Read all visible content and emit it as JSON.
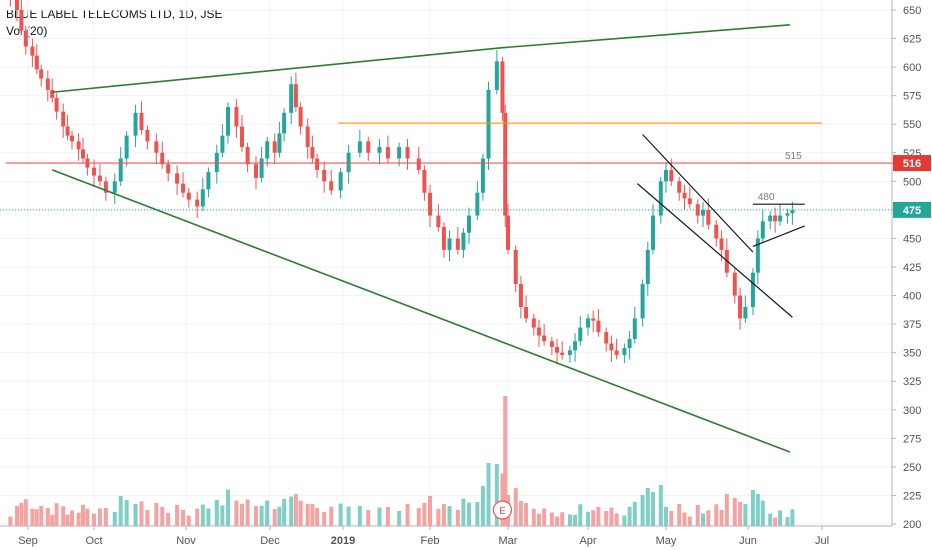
{
  "header": {
    "title": "BLUE LABEL TELECOMS LTD, 1D, JSE",
    "volume_label": "Vol (20)"
  },
  "colors": {
    "up": "#26a69a",
    "down": "#ef5350",
    "up_vol": "#7fcfc7",
    "down_vol": "#f5a3a1",
    "trend_green": "#2e7d32",
    "resistance_orange": "#ff9800",
    "level_red": "#ef5350",
    "price_line": "#26a69a",
    "channel": "#131722"
  },
  "chart_data": {
    "type": "candlestick",
    "symbol": "BLUE LABEL TELECOMS LTD",
    "interval": "1D",
    "exchange": "JSE",
    "x_ticks": [
      "Sep",
      "Oct",
      "Nov",
      "Dec",
      "2019",
      "Feb",
      "Mar",
      "Apr",
      "May",
      "Jun",
      "Jul"
    ],
    "x_tick_dates": [
      "2018-09-01",
      "2018-10-01",
      "2018-11-01",
      "2018-12-01",
      "2019-01-01",
      "2019-02-01",
      "2019-03-01",
      "2019-04-01",
      "2019-05-01",
      "2019-06-01",
      "2019-07-01"
    ],
    "y_ticks": [
      200,
      225,
      250,
      275,
      300,
      325,
      350,
      375,
      400,
      425,
      450,
      475,
      500,
      525,
      550,
      575,
      600,
      625,
      650
    ],
    "ylim": [
      196,
      660
    ],
    "last_price_label": "475",
    "last_price": 475,
    "level_label": "516",
    "level_price": 516,
    "annotations": [
      {
        "text": "515",
        "date": "2019-06-16",
        "price": 516
      },
      {
        "text": "480",
        "date": "2019-06-05",
        "price": 480
      }
    ],
    "event_marker": {
      "text": "E",
      "date": "2019-02-27"
    },
    "lines": [
      {
        "name": "upper-trend",
        "color": "trend_green",
        "points": [
          [
            "2018-09-12",
            578
          ],
          [
            "2019-02-27",
            617
          ],
          [
            "2019-06-18",
            637
          ]
        ]
      },
      {
        "name": "lower-trend",
        "color": "trend_green",
        "points": [
          [
            "2018-09-12",
            510
          ],
          [
            "2019-06-18",
            263
          ]
        ]
      },
      {
        "name": "resistance",
        "color": "resistance_orange",
        "points": [
          [
            "2018-12-30",
            551
          ],
          [
            "2019-07-01",
            551
          ]
        ]
      },
      {
        "name": "level-516",
        "color": "level_red",
        "points": [
          [
            "2018-08-22",
            516
          ],
          [
            "2019-08-10",
            516
          ]
        ]
      },
      {
        "name": "channel-upper",
        "color": "channel",
        "points": [
          [
            "2019-04-22",
            541
          ],
          [
            "2019-06-03",
            438
          ]
        ]
      },
      {
        "name": "channel-lower",
        "color": "channel",
        "points": [
          [
            "2019-04-20",
            498
          ],
          [
            "2019-06-19",
            381
          ]
        ]
      },
      {
        "name": "flag-upper",
        "color": "channel",
        "points": [
          [
            "2019-06-03",
            480
          ],
          [
            "2019-06-24",
            480
          ]
        ]
      },
      {
        "name": "flag-lower",
        "color": "channel",
        "points": [
          [
            "2019-06-03",
            443
          ],
          [
            "2019-06-24",
            461
          ]
        ]
      }
    ],
    "series_close": [
      [
        "2018-08-24",
        660
      ],
      [
        "2018-08-27",
        650
      ],
      [
        "2018-08-29",
        632
      ],
      [
        "2018-08-31",
        618
      ],
      [
        "2018-09-03",
        610
      ],
      [
        "2018-09-05",
        598
      ],
      [
        "2018-09-07",
        590
      ],
      [
        "2018-09-10",
        580
      ],
      [
        "2018-09-12",
        573
      ],
      [
        "2018-09-14",
        561
      ],
      [
        "2018-09-17",
        548
      ],
      [
        "2018-09-19",
        540
      ],
      [
        "2018-09-21",
        535
      ],
      [
        "2018-09-24",
        528
      ],
      [
        "2018-09-26",
        520
      ],
      [
        "2018-09-28",
        512
      ],
      [
        "2018-10-01",
        505
      ],
      [
        "2018-10-03",
        500
      ],
      [
        "2018-10-05",
        490
      ],
      [
        "2018-10-08",
        500
      ],
      [
        "2018-10-10",
        520
      ],
      [
        "2018-10-12",
        540
      ],
      [
        "2018-10-15",
        560
      ],
      [
        "2018-10-17",
        545
      ],
      [
        "2018-10-19",
        535
      ],
      [
        "2018-10-22",
        525
      ],
      [
        "2018-10-24",
        515
      ],
      [
        "2018-10-26",
        507
      ],
      [
        "2018-10-29",
        498
      ],
      [
        "2018-10-31",
        490
      ],
      [
        "2018-11-02",
        484
      ],
      [
        "2018-11-05",
        478
      ],
      [
        "2018-11-07",
        493
      ],
      [
        "2018-11-09",
        508
      ],
      [
        "2018-11-12",
        525
      ],
      [
        "2018-11-14",
        540
      ],
      [
        "2018-11-16",
        565
      ],
      [
        "2018-11-19",
        548
      ],
      [
        "2018-11-21",
        530
      ],
      [
        "2018-11-23",
        515
      ],
      [
        "2018-11-26",
        503
      ],
      [
        "2018-11-28",
        520
      ],
      [
        "2018-11-30",
        535
      ],
      [
        "2018-12-03",
        525
      ],
      [
        "2018-12-05",
        542
      ],
      [
        "2018-12-07",
        560
      ],
      [
        "2018-12-10",
        585
      ],
      [
        "2018-12-12",
        565
      ],
      [
        "2018-12-14",
        548
      ],
      [
        "2018-12-17",
        530
      ],
      [
        "2018-12-19",
        520
      ],
      [
        "2018-12-21",
        510
      ],
      [
        "2018-12-24",
        500
      ],
      [
        "2018-12-27",
        492
      ],
      [
        "2018-12-31",
        508
      ],
      [
        "2019-01-03",
        525
      ],
      [
        "2019-01-07",
        535
      ],
      [
        "2019-01-10",
        525
      ],
      [
        "2019-01-14",
        530
      ],
      [
        "2019-01-17",
        520
      ],
      [
        "2019-01-21",
        530
      ],
      [
        "2019-01-24",
        520
      ],
      [
        "2019-01-28",
        510
      ],
      [
        "2019-01-30",
        490
      ],
      [
        "2019-02-01",
        470
      ],
      [
        "2019-02-04",
        460
      ],
      [
        "2019-02-06",
        440
      ],
      [
        "2019-02-08",
        450
      ],
      [
        "2019-02-11",
        440
      ],
      [
        "2019-02-13",
        455
      ],
      [
        "2019-02-15",
        470
      ],
      [
        "2019-02-18",
        490
      ],
      [
        "2019-02-20",
        520
      ],
      [
        "2019-02-22",
        580
      ],
      [
        "2019-02-25",
        605
      ],
      [
        "2019-02-27",
        560
      ],
      [
        "2019-02-28",
        470
      ],
      [
        "2019-03-01",
        440
      ],
      [
        "2019-03-04",
        410
      ],
      [
        "2019-03-06",
        390
      ],
      [
        "2019-03-08",
        380
      ],
      [
        "2019-03-11",
        372
      ],
      [
        "2019-03-13",
        365
      ],
      [
        "2019-03-15",
        360
      ],
      [
        "2019-03-18",
        355
      ],
      [
        "2019-03-20",
        350
      ],
      [
        "2019-03-22",
        348
      ],
      [
        "2019-03-25",
        352
      ],
      [
        "2019-03-27",
        360
      ],
      [
        "2019-03-29",
        372
      ],
      [
        "2019-04-01",
        380
      ],
      [
        "2019-04-03",
        378
      ],
      [
        "2019-04-05",
        368
      ],
      [
        "2019-04-08",
        358
      ],
      [
        "2019-04-10",
        352
      ],
      [
        "2019-04-12",
        348
      ],
      [
        "2019-04-15",
        354
      ],
      [
        "2019-04-17",
        362
      ],
      [
        "2019-04-19",
        380
      ],
      [
        "2019-04-22",
        410
      ],
      [
        "2019-04-24",
        440
      ],
      [
        "2019-04-26",
        470
      ],
      [
        "2019-04-29",
        500
      ],
      [
        "2019-05-01",
        510
      ],
      [
        "2019-05-03",
        500
      ],
      [
        "2019-05-06",
        490
      ],
      [
        "2019-05-08",
        485
      ],
      [
        "2019-05-10",
        480
      ],
      [
        "2019-05-13",
        470
      ],
      [
        "2019-05-15",
        475
      ],
      [
        "2019-05-17",
        462
      ],
      [
        "2019-05-20",
        450
      ],
      [
        "2019-05-22",
        440
      ],
      [
        "2019-05-24",
        420
      ],
      [
        "2019-05-27",
        400
      ],
      [
        "2019-05-29",
        380
      ],
      [
        "2019-05-31",
        390
      ],
      [
        "2019-06-03",
        420
      ],
      [
        "2019-06-05",
        450
      ],
      [
        "2019-06-07",
        465
      ],
      [
        "2019-06-10",
        470
      ],
      [
        "2019-06-12",
        465
      ],
      [
        "2019-06-14",
        470
      ],
      [
        "2019-06-17",
        472
      ],
      [
        "2019-06-19",
        475
      ]
    ]
  }
}
